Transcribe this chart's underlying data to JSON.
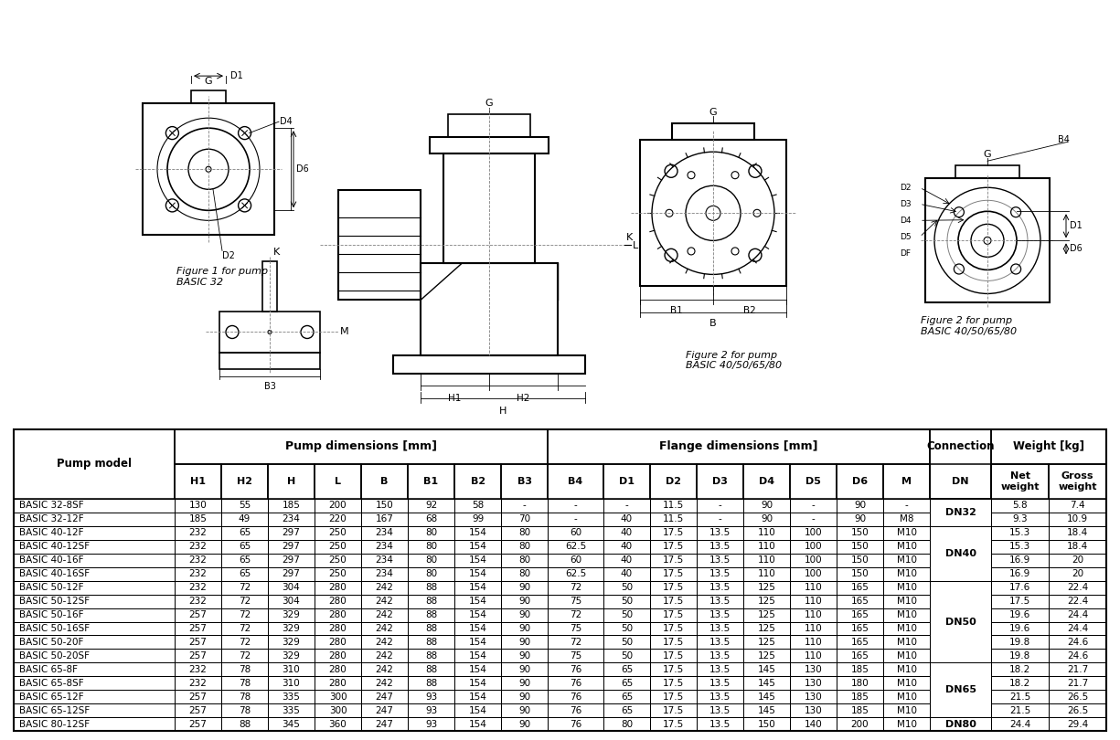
{
  "table_data": [
    [
      "BASIC 32-8SF",
      "130",
      "55",
      "185",
      "200",
      "150",
      "92",
      "58",
      "-",
      "-",
      "-",
      "11.5",
      "-",
      "90",
      "-",
      "90",
      "-",
      "DN32",
      "5.8",
      "7.4"
    ],
    [
      "BASIC 32-12F",
      "185",
      "49",
      "234",
      "220",
      "167",
      "68",
      "99",
      "70",
      "-",
      "40",
      "11.5",
      "-",
      "90",
      "-",
      "90",
      "M8",
      "DN32",
      "9.3",
      "10.9"
    ],
    [
      "BASIC 40-12F",
      "232",
      "65",
      "297",
      "250",
      "234",
      "80",
      "154",
      "80",
      "60",
      "40",
      "17.5",
      "13.5",
      "110",
      "100",
      "150",
      "M10",
      "DN40",
      "15.3",
      "18.4"
    ],
    [
      "BASIC 40-12SF",
      "232",
      "65",
      "297",
      "250",
      "234",
      "80",
      "154",
      "80",
      "62.5",
      "40",
      "17.5",
      "13.5",
      "110",
      "100",
      "150",
      "M10",
      "DN40",
      "15.3",
      "18.4"
    ],
    [
      "BASIC 40-16F",
      "232",
      "65",
      "297",
      "250",
      "234",
      "80",
      "154",
      "80",
      "60",
      "40",
      "17.5",
      "13.5",
      "110",
      "100",
      "150",
      "M10",
      "DN40",
      "16.9",
      "20"
    ],
    [
      "BASIC 40-16SF",
      "232",
      "65",
      "297",
      "250",
      "234",
      "80",
      "154",
      "80",
      "62.5",
      "40",
      "17.5",
      "13.5",
      "110",
      "100",
      "150",
      "M10",
      "DN40",
      "16.9",
      "20"
    ],
    [
      "BASIC 50-12F",
      "232",
      "72",
      "304",
      "280",
      "242",
      "88",
      "154",
      "90",
      "72",
      "50",
      "17.5",
      "13.5",
      "125",
      "110",
      "165",
      "M10",
      "DN50",
      "17.6",
      "22.4"
    ],
    [
      "BASIC 50-12SF",
      "232",
      "72",
      "304",
      "280",
      "242",
      "88",
      "154",
      "90",
      "75",
      "50",
      "17.5",
      "13.5",
      "125",
      "110",
      "165",
      "M10",
      "DN50",
      "17.5",
      "22.4"
    ],
    [
      "BASIC 50-16F",
      "257",
      "72",
      "329",
      "280",
      "242",
      "88",
      "154",
      "90",
      "72",
      "50",
      "17.5",
      "13.5",
      "125",
      "110",
      "165",
      "M10",
      "DN50",
      "19.6",
      "24.4"
    ],
    [
      "BASIC 50-16SF",
      "257",
      "72",
      "329",
      "280",
      "242",
      "88",
      "154",
      "90",
      "75",
      "50",
      "17.5",
      "13.5",
      "125",
      "110",
      "165",
      "M10",
      "DN50",
      "19.6",
      "24.4"
    ],
    [
      "BASIC 50-20F",
      "257",
      "72",
      "329",
      "280",
      "242",
      "88",
      "154",
      "90",
      "72",
      "50",
      "17.5",
      "13.5",
      "125",
      "110",
      "165",
      "M10",
      "DN50",
      "19.8",
      "24.6"
    ],
    [
      "BASIC 50-20SF",
      "257",
      "72",
      "329",
      "280",
      "242",
      "88",
      "154",
      "90",
      "75",
      "50",
      "17.5",
      "13.5",
      "125",
      "110",
      "165",
      "M10",
      "DN50",
      "19.8",
      "24.6"
    ],
    [
      "BASIC 65-8F",
      "232",
      "78",
      "310",
      "280",
      "242",
      "88",
      "154",
      "90",
      "76",
      "65",
      "17.5",
      "13.5",
      "145",
      "130",
      "185",
      "M10",
      "DN65",
      "18.2",
      "21.7"
    ],
    [
      "BASIC 65-8SF",
      "232",
      "78",
      "310",
      "280",
      "242",
      "88",
      "154",
      "90",
      "76",
      "65",
      "17.5",
      "13.5",
      "145",
      "130",
      "180",
      "M10",
      "DN65",
      "18.2",
      "21.7"
    ],
    [
      "BASIC 65-12F",
      "257",
      "78",
      "335",
      "300",
      "247",
      "93",
      "154",
      "90",
      "76",
      "65",
      "17.5",
      "13.5",
      "145",
      "130",
      "185",
      "M10",
      "DN65",
      "21.5",
      "26.5"
    ],
    [
      "BASIC 65-12SF",
      "257",
      "78",
      "335",
      "300",
      "247",
      "93",
      "154",
      "90",
      "76",
      "65",
      "17.5",
      "13.5",
      "145",
      "130",
      "185",
      "M10",
      "DN65",
      "21.5",
      "26.5"
    ],
    [
      "BASIC 80-12SF",
      "257",
      "88",
      "345",
      "360",
      "247",
      "93",
      "154",
      "90",
      "76",
      "80",
      "17.5",
      "13.5",
      "150",
      "140",
      "200",
      "M10",
      "DN80",
      "24.4",
      "29.4"
    ]
  ],
  "col_widths": [
    1.45,
    0.42,
    0.42,
    0.42,
    0.42,
    0.42,
    0.42,
    0.42,
    0.42,
    0.5,
    0.42,
    0.42,
    0.42,
    0.42,
    0.42,
    0.42,
    0.42,
    0.55,
    0.52,
    0.52
  ],
  "figure1_caption": "Figure 1 for pump\nBASIC 32",
  "figure2_caption": "Figure 2 for pump\nBASIC 40/50/65/80"
}
